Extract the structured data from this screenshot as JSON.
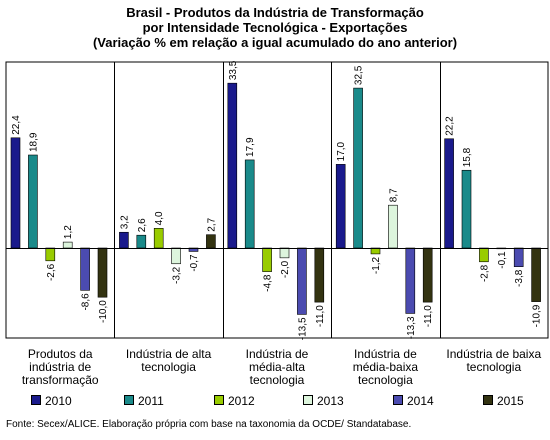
{
  "title_lines": [
    "Brasil - Produtos da Indústria de Transformação",
    "por Intensidade Tecnológica - Exportações",
    "(Variação % em relação a igual acumulado do ano anterior)"
  ],
  "source": "Fonte: Secex/ALICE. Elaboração própria com base na taxonomia da OCDE/ Standatabase.",
  "colors": {
    "2010": "#1a1a8c",
    "2011": "#1a8a8a",
    "2012": "#99cc00",
    "2013": "#ddf5dd",
    "2014": "#4b4bb0",
    "2015": "#333311"
  },
  "chart_data": {
    "type": "bar",
    "categories": [
      [
        "Produtos da",
        "indústria de",
        "transformação"
      ],
      [
        "Indústria de alta",
        "tecnologia"
      ],
      [
        "Indústria de",
        "média-alta",
        "tecnologia"
      ],
      [
        "Indústria de",
        "média-baixa",
        "tecnologia"
      ],
      [
        "Indústria de baixa",
        "tecnologia"
      ]
    ],
    "series": [
      {
        "name": "2010",
        "values": [
          22.4,
          3.2,
          33.5,
          17.0,
          22.2
        ],
        "labels": [
          "22,4",
          "3,2",
          "33,5",
          "17,0",
          "22,2"
        ]
      },
      {
        "name": "2011",
        "values": [
          18.9,
          2.6,
          17.9,
          32.5,
          15.8
        ],
        "labels": [
          "18,9",
          "2,6",
          "17,9",
          "32,5",
          "15,8"
        ]
      },
      {
        "name": "2012",
        "values": [
          -2.6,
          4.0,
          -4.8,
          -1.2,
          -2.8
        ],
        "labels": [
          "-2,6",
          "4,0",
          "-4,8",
          "-1,2",
          "-2,8"
        ]
      },
      {
        "name": "2013",
        "values": [
          1.2,
          -3.2,
          -2.0,
          8.7,
          -0.1
        ],
        "labels": [
          "1,2",
          "-3,2",
          "-2,0",
          "8,7",
          "-0,1"
        ]
      },
      {
        "name": "2014",
        "values": [
          -8.6,
          -0.7,
          -13.5,
          -13.3,
          -3.8
        ],
        "labels": [
          "-8,6",
          "-0,7",
          "-13,5",
          "-13,3",
          "-3,8"
        ]
      },
      {
        "name": "2015",
        "values": [
          -10.0,
          2.7,
          -11.0,
          -11.0,
          -10.9
        ],
        "labels": [
          "-10,0",
          "2,7",
          "-11,0",
          "-11,0",
          "-10,9"
        ]
      }
    ],
    "ylim": [
      -18,
      38
    ],
    "grid": false,
    "legend": "bottom"
  }
}
